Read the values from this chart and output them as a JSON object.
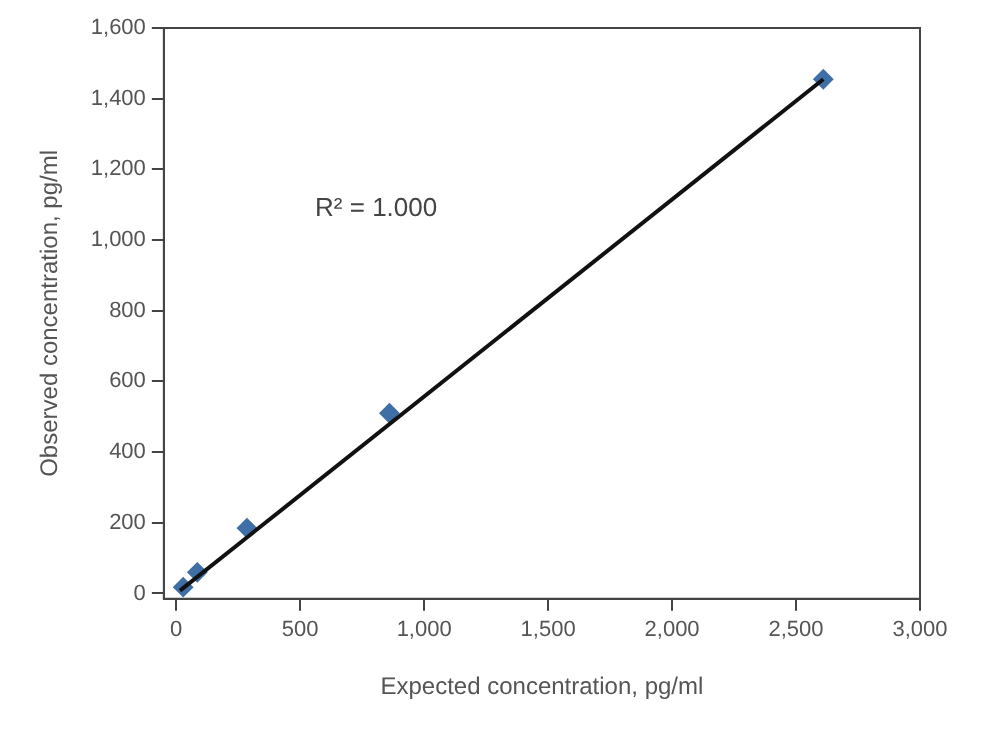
{
  "chart_data": {
    "type": "scatter",
    "xlabel": "Expected concentration, pg/ml",
    "ylabel": "Observed concentration, pg/ml",
    "xlim": [
      -50,
      3000
    ],
    "xticks": [
      {
        "value": 0,
        "label": "0"
      },
      {
        "value": 500,
        "label": "500"
      },
      {
        "value": 1000,
        "label": "1,000"
      },
      {
        "value": 1500,
        "label": "1,500"
      },
      {
        "value": 2000,
        "label": "2,000"
      },
      {
        "value": 2500,
        "label": "2,500"
      },
      {
        "value": 3000,
        "label": "3,000"
      }
    ],
    "ylim": [
      -15,
      1600
    ],
    "yticks": [
      {
        "value": 0,
        "label": "0"
      },
      {
        "value": 200,
        "label": "200"
      },
      {
        "value": 400,
        "label": "400"
      },
      {
        "value": 600,
        "label": "600"
      },
      {
        "value": 800,
        "label": "800"
      },
      {
        "value": 1000,
        "label": "1,000"
      },
      {
        "value": 1200,
        "label": "1,200"
      },
      {
        "value": 1400,
        "label": "1,400"
      },
      {
        "value": 1600,
        "label": "1,600"
      }
    ],
    "grid": false,
    "legend": false,
    "marker": "diamond",
    "series": [
      {
        "color": "#3f6fa6",
        "x": [
          28,
          85,
          285,
          860,
          2610
        ],
        "values": [
          18,
          60,
          185,
          510,
          1455
        ]
      },
      {
        "type": "line",
        "color": "#111111",
        "x": [
          15,
          2610
        ],
        "values": [
          8,
          1455
        ],
        "marker": "none",
        "line_style": "solid"
      }
    ],
    "annotations": [
      "R² = 1.000"
    ]
  }
}
